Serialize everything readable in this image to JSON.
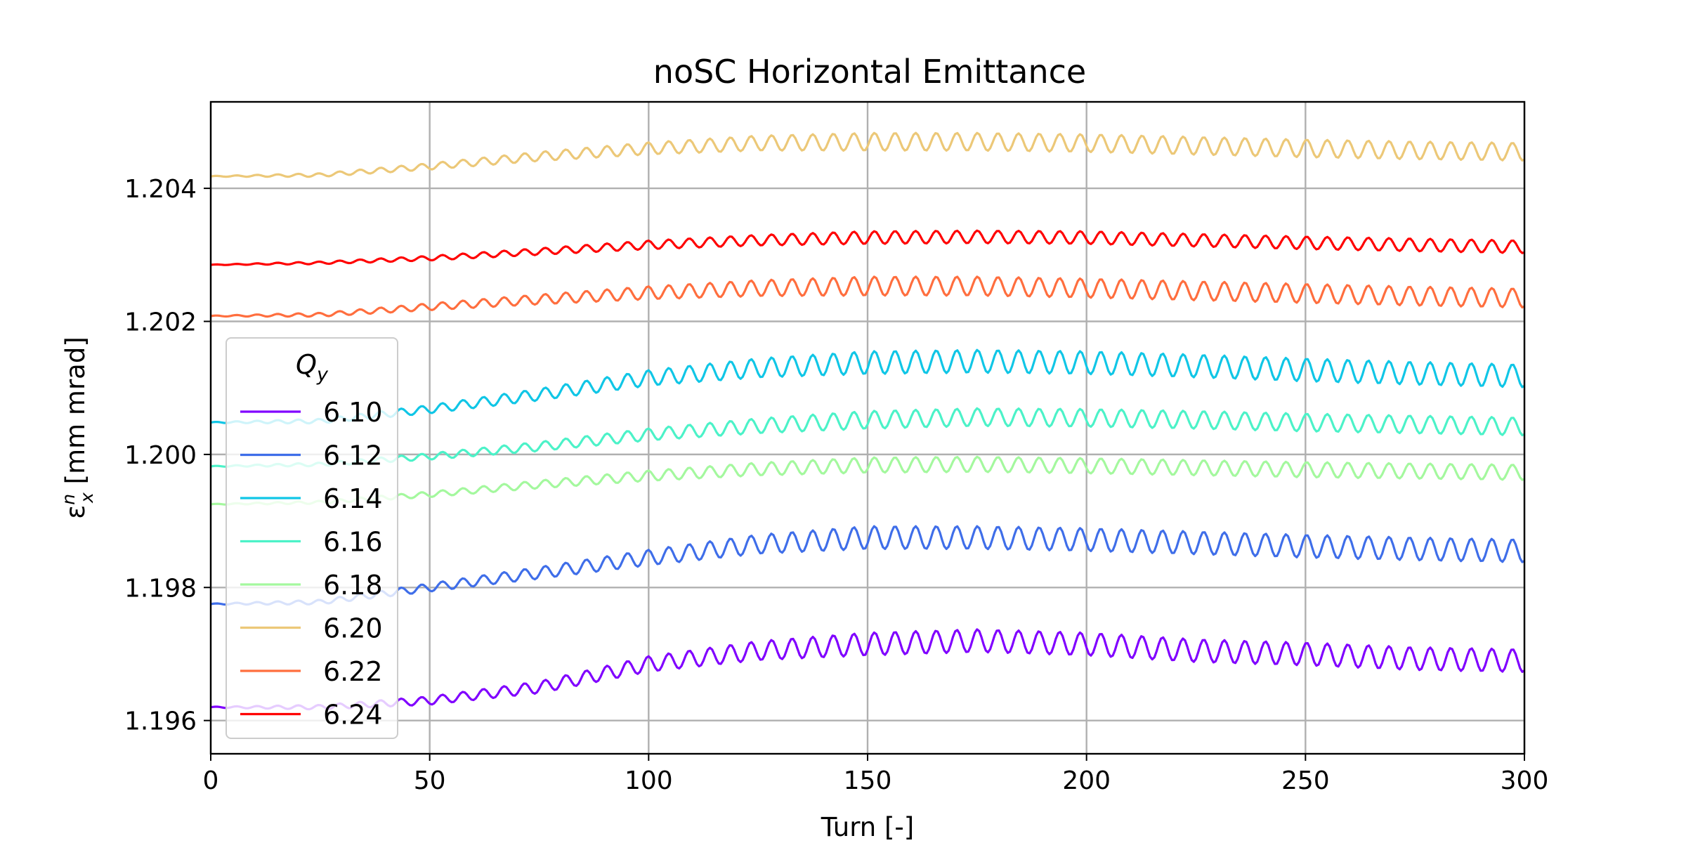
{
  "chart_data": {
    "type": "line",
    "title": "noSC Horizontal Emittance",
    "xlabel": "Turn [-]",
    "ylabel_parts": {
      "symbol": "ε",
      "superscript": "n",
      "subscript": "x",
      "unit": " [mm mrad]"
    },
    "xlim": [
      0,
      300
    ],
    "ylim": [
      1.1955,
      1.2053
    ],
    "xticks": [
      0,
      50,
      100,
      150,
      200,
      250,
      300
    ],
    "xtick_labels": [
      "0",
      "50",
      "100",
      "150",
      "200",
      "250",
      "300"
    ],
    "yticks": [
      1.196,
      1.198,
      1.2,
      1.202,
      1.204
    ],
    "ytick_labels": [
      "1.196",
      "1.198",
      "1.200",
      "1.202",
      "1.204"
    ],
    "grid": true,
    "legend": {
      "title_symbol": "Q",
      "title_subscript": "y",
      "placement": "center-left",
      "entries": [
        "6.10",
        "6.12",
        "6.14",
        "6.16",
        "6.18",
        "6.20",
        "6.22",
        "6.24"
      ]
    },
    "oscillation": {
      "period_turns": 4.7,
      "amplitude_growth": [
        0.04,
        0.95
      ]
    },
    "series": [
      {
        "name": "6.10",
        "color": "#8000ff",
        "x": [
          0,
          25,
          50,
          75,
          100,
          125,
          150,
          175,
          200,
          225,
          250,
          275,
          300
        ],
        "y": [
          1.1962,
          1.1962,
          1.1963,
          1.1965,
          1.19685,
          1.19705,
          1.19715,
          1.1972,
          1.19715,
          1.19705,
          1.197,
          1.19693,
          1.1969
        ],
        "amp": 0.00018
      },
      {
        "name": "6.12",
        "color": "#3f6ee9",
        "x": [
          0,
          25,
          50,
          75,
          100,
          125,
          150,
          175,
          200,
          225,
          250,
          275,
          300
        ],
        "y": [
          1.19775,
          1.19778,
          1.198,
          1.19822,
          1.19845,
          1.19865,
          1.19875,
          1.19875,
          1.19872,
          1.19867,
          1.19862,
          1.19858,
          1.19855
        ],
        "amp": 0.00018
      },
      {
        "name": "6.14",
        "color": "#10c6e6",
        "x": [
          0,
          25,
          50,
          75,
          100,
          125,
          150,
          175,
          200,
          225,
          250,
          275,
          300
        ],
        "y": [
          1.20048,
          1.2005,
          1.20068,
          1.2009,
          1.20115,
          1.2013,
          1.20138,
          1.2014,
          1.20138,
          1.20133,
          1.20127,
          1.20122,
          1.20118
        ],
        "amp": 0.00018
      },
      {
        "name": "6.16",
        "color": "#4cf2c8",
        "x": [
          0,
          25,
          50,
          75,
          100,
          125,
          150,
          175,
          200,
          225,
          250,
          275,
          300
        ],
        "y": [
          1.19982,
          1.19985,
          1.19997,
          1.20012,
          1.2003,
          1.20043,
          1.20052,
          1.20056,
          1.20055,
          1.20052,
          1.20048,
          1.20045,
          1.20042
        ],
        "amp": 0.00014
      },
      {
        "name": "6.18",
        "color": "#a4f89e",
        "x": [
          0,
          25,
          50,
          75,
          100,
          125,
          150,
          175,
          200,
          225,
          250,
          275,
          300
        ],
        "y": [
          1.19925,
          1.19928,
          1.1994,
          1.19955,
          1.19968,
          1.19978,
          1.19984,
          1.19985,
          1.19983,
          1.1998,
          1.19977,
          1.19975,
          1.19973
        ],
        "amp": 0.00012
      },
      {
        "name": "6.20",
        "color": "#ecc878",
        "x": [
          0,
          25,
          50,
          75,
          100,
          125,
          150,
          175,
          200,
          225,
          250,
          275,
          300
        ],
        "y": [
          1.20418,
          1.2042,
          1.20433,
          1.20448,
          1.2046,
          1.20468,
          1.2047,
          1.2047,
          1.20468,
          1.20464,
          1.2046,
          1.20457,
          1.20455
        ],
        "amp": 0.00014
      },
      {
        "name": "6.22",
        "color": "#ff6e3e",
        "x": [
          0,
          25,
          50,
          75,
          100,
          125,
          150,
          175,
          200,
          225,
          250,
          275,
          300
        ],
        "y": [
          1.20208,
          1.2021,
          1.20222,
          1.20233,
          1.20243,
          1.2025,
          1.20253,
          1.20253,
          1.2025,
          1.20246,
          1.20242,
          1.20238,
          1.20235
        ],
        "amp": 0.00015
      },
      {
        "name": "6.24",
        "color": "#ff0000",
        "x": [
          0,
          25,
          50,
          75,
          100,
          125,
          150,
          175,
          200,
          225,
          250,
          275,
          300
        ],
        "y": [
          1.20285,
          1.20288,
          1.20295,
          1.20305,
          1.20315,
          1.20322,
          1.20326,
          1.20327,
          1.20326,
          1.20322,
          1.20318,
          1.20315,
          1.20312
        ],
        "amp": 0.0001
      }
    ]
  }
}
